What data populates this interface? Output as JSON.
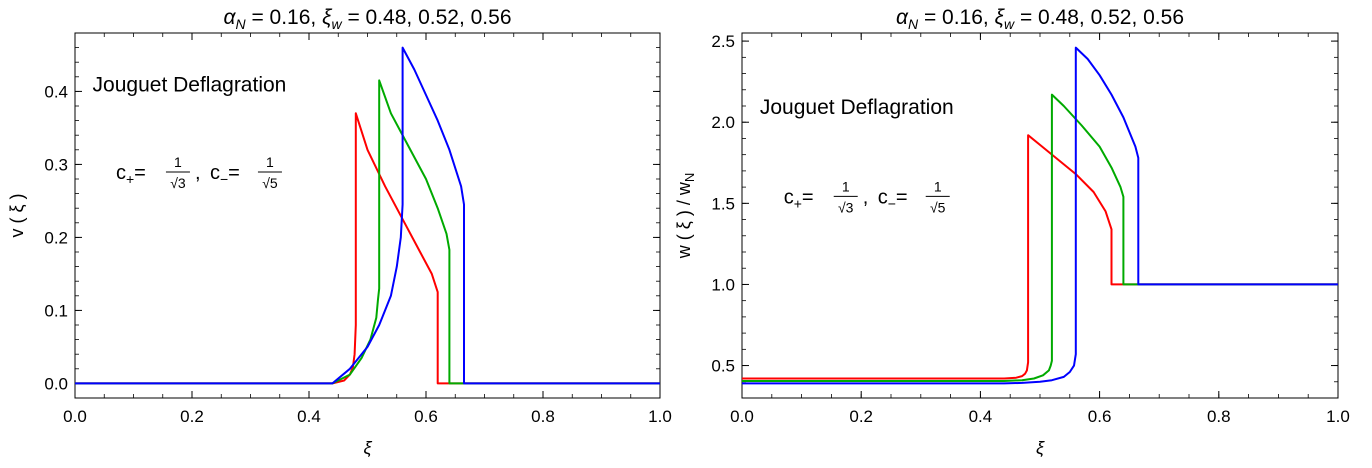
{
  "chart_data": [
    {
      "type": "line",
      "title": "α_N = 0.16, ξ_w = 0.48, 0.52, 0.56",
      "title_parts": {
        "alpha": "α",
        "alpha_sub": "N",
        "alpha_rest": " = 0.16, ",
        "xi": "ξ",
        "xi_sub": "w",
        "xi_rest": " = 0.48, 0.52, 0.56"
      },
      "xlabel": "ξ",
      "ylabel": "v ( ξ )",
      "xlim": [
        0,
        1
      ],
      "ylim": [
        -0.02,
        0.48
      ],
      "xticks": [
        0.0,
        0.2,
        0.4,
        0.6,
        0.8,
        1.0
      ],
      "xtick_labels": [
        "0.0",
        "0.2",
        "0.4",
        "0.6",
        "0.8",
        "1.0"
      ],
      "yticks": [
        0.0,
        0.1,
        0.2,
        0.3,
        0.4
      ],
      "ytick_labels": [
        "0.0",
        "0.1",
        "0.2",
        "0.3",
        "0.4"
      ],
      "annotation": "Jouguet Deflagration",
      "annotation_pos": [
        0.03,
        0.4
      ],
      "formula_pos": [
        0.07,
        0.28
      ],
      "series": [
        {
          "color": "#ff0000",
          "x": [
            0.0,
            0.44,
            0.46,
            0.47,
            0.475,
            0.478,
            0.48,
            0.48,
            0.5,
            0.53,
            0.56,
            0.59,
            0.61,
            0.62,
            0.62,
            0.623,
            1.0
          ],
          "y": [
            0.0,
            0.0,
            0.004,
            0.012,
            0.022,
            0.04,
            0.08,
            0.37,
            0.32,
            0.27,
            0.225,
            0.18,
            0.15,
            0.125,
            0.0,
            0.0,
            0.0
          ]
        },
        {
          "color": "#00aa00",
          "x": [
            0.0,
            0.44,
            0.47,
            0.49,
            0.505,
            0.515,
            0.518,
            0.52,
            0.52,
            0.54,
            0.57,
            0.6,
            0.62,
            0.635,
            0.64,
            0.64,
            0.643,
            1.0
          ],
          "y": [
            0.0,
            0.0,
            0.012,
            0.035,
            0.06,
            0.09,
            0.115,
            0.13,
            0.415,
            0.37,
            0.325,
            0.28,
            0.24,
            0.205,
            0.183,
            0.0,
            0.0,
            0.0
          ]
        },
        {
          "color": "#0000ff",
          "x": [
            0.0,
            0.44,
            0.47,
            0.5,
            0.52,
            0.54,
            0.55,
            0.557,
            0.56,
            0.56,
            0.58,
            0.6,
            0.62,
            0.64,
            0.66,
            0.665,
            0.665,
            1.0
          ],
          "y": [
            0.0,
            0.0,
            0.02,
            0.05,
            0.08,
            0.12,
            0.16,
            0.2,
            0.245,
            0.46,
            0.43,
            0.395,
            0.36,
            0.32,
            0.27,
            0.245,
            0.0,
            0.0
          ]
        }
      ]
    },
    {
      "type": "line",
      "title": "α_N = 0.16, ξ_w = 0.48, 0.52, 0.56",
      "title_parts": {
        "alpha": "α",
        "alpha_sub": "N",
        "alpha_rest": " = 0.16, ",
        "xi": "ξ",
        "xi_sub": "w",
        "xi_rest": " = 0.48, 0.52, 0.56"
      },
      "xlabel": "ξ",
      "ylabel": "w ( ξ ) / w",
      "ylabel_sub": "N",
      "xlim": [
        0,
        1
      ],
      "ylim": [
        0.3,
        2.55
      ],
      "xticks": [
        0.0,
        0.2,
        0.4,
        0.6,
        0.8,
        1.0
      ],
      "xtick_labels": [
        "0.0",
        "0.2",
        "0.4",
        "0.6",
        "0.8",
        "1.0"
      ],
      "yticks": [
        0.5,
        1.0,
        1.5,
        2.0,
        2.5
      ],
      "ytick_labels": [
        "0.5",
        "1.0",
        "1.5",
        "2.0",
        "2.5"
      ],
      "annotation": "Jouguet Deflagration",
      "annotation_pos": [
        0.03,
        2.05
      ],
      "formula_pos": [
        0.07,
        1.5
      ],
      "series": [
        {
          "color": "#ff0000",
          "x": [
            0.0,
            0.44,
            0.46,
            0.47,
            0.475,
            0.478,
            0.48,
            0.48,
            0.5,
            0.53,
            0.56,
            0.59,
            0.61,
            0.62,
            0.62,
            0.623,
            1.0
          ],
          "y": [
            0.42,
            0.42,
            0.425,
            0.435,
            0.45,
            0.47,
            0.52,
            1.92,
            1.86,
            1.77,
            1.68,
            1.57,
            1.45,
            1.34,
            1.0,
            1.0,
            1.0
          ]
        },
        {
          "color": "#00aa00",
          "x": [
            0.0,
            0.44,
            0.47,
            0.49,
            0.505,
            0.515,
            0.518,
            0.52,
            0.52,
            0.54,
            0.57,
            0.6,
            0.62,
            0.635,
            0.64,
            0.64,
            0.643,
            1.0
          ],
          "y": [
            0.405,
            0.405,
            0.41,
            0.42,
            0.44,
            0.47,
            0.5,
            0.53,
            2.17,
            2.1,
            1.98,
            1.85,
            1.72,
            1.6,
            1.54,
            1.0,
            1.0,
            1.0
          ]
        },
        {
          "color": "#0000ff",
          "x": [
            0.0,
            0.44,
            0.47,
            0.5,
            0.52,
            0.54,
            0.55,
            0.557,
            0.56,
            0.56,
            0.58,
            0.6,
            0.62,
            0.64,
            0.66,
            0.665,
            0.665,
            1.0
          ],
          "y": [
            0.39,
            0.39,
            0.393,
            0.4,
            0.41,
            0.43,
            0.46,
            0.5,
            0.57,
            2.46,
            2.39,
            2.29,
            2.17,
            2.03,
            1.85,
            1.78,
            1.0,
            1.0
          ]
        }
      ]
    }
  ],
  "formula": {
    "c_plus": "c",
    "plus": "+",
    "eq": "=",
    "one": "1",
    "sqrt3": "√3",
    "comma": ",",
    "c_minus": "c",
    "minus": "−",
    "sqrt5": "√5"
  }
}
